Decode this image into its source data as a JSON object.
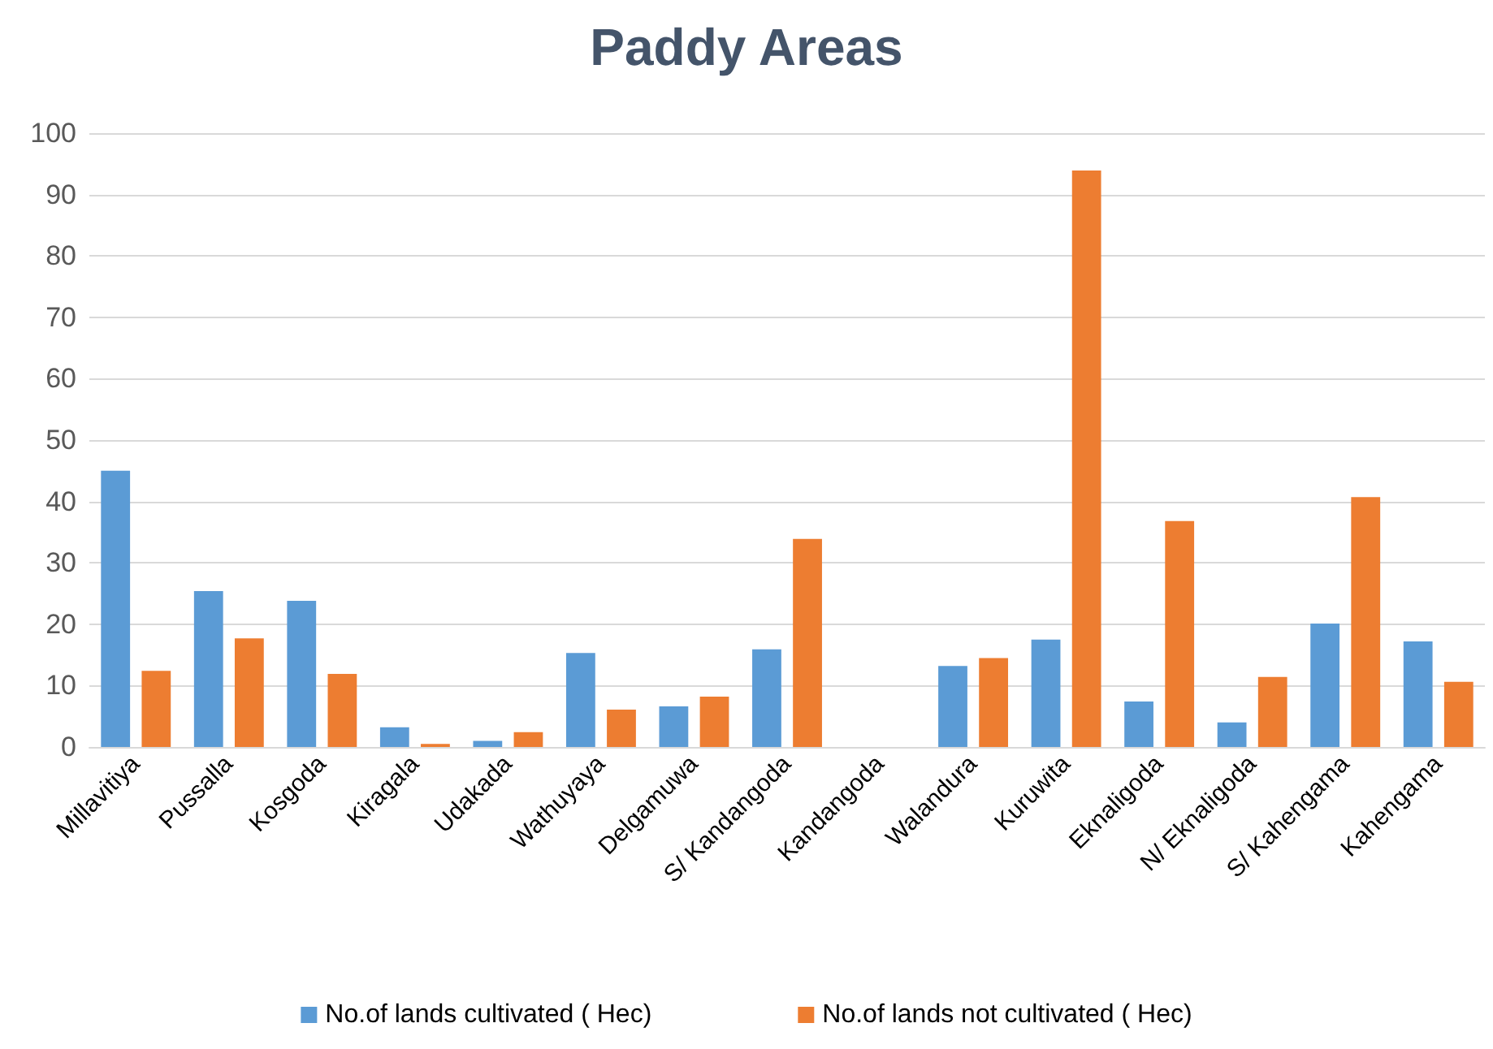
{
  "chart_data": {
    "type": "bar",
    "title": "Paddy Areas",
    "categories": [
      "Millavitiya",
      "Pussalla",
      "Kosgoda",
      "Kiragala",
      "Udakada",
      "Wathuyaya",
      "Delgamuwa",
      "S/ Kandangoda",
      "Kandangoda",
      "Walandura",
      "Kuruwita",
      "Eknaligoda",
      "N/ Eknaligoda",
      "S/ Kahengama",
      "Kahengama"
    ],
    "series": [
      {
        "name": "No.of lands cultivated ( Hec)",
        "color": "#5b9bd5",
        "values": [
          45,
          25.4,
          23.8,
          3.2,
          1,
          15.3,
          6.6,
          15.9,
          0,
          13.2,
          17.5,
          7.4,
          4,
          20.1,
          17.2
        ]
      },
      {
        "name": "No.of lands not cultivated ( Hec)",
        "color": "#ed7d31",
        "values": [
          12.4,
          17.7,
          11.9,
          0.5,
          2.4,
          6.1,
          8.2,
          33.9,
          0,
          14.5,
          93.9,
          36.8,
          11.4,
          40.7,
          10.6
        ]
      }
    ],
    "ylim": [
      0,
      100
    ],
    "yticks": [
      0,
      10,
      20,
      30,
      40,
      50,
      60,
      70,
      80,
      90,
      100
    ],
    "grid": "y",
    "legend": "bottom"
  }
}
